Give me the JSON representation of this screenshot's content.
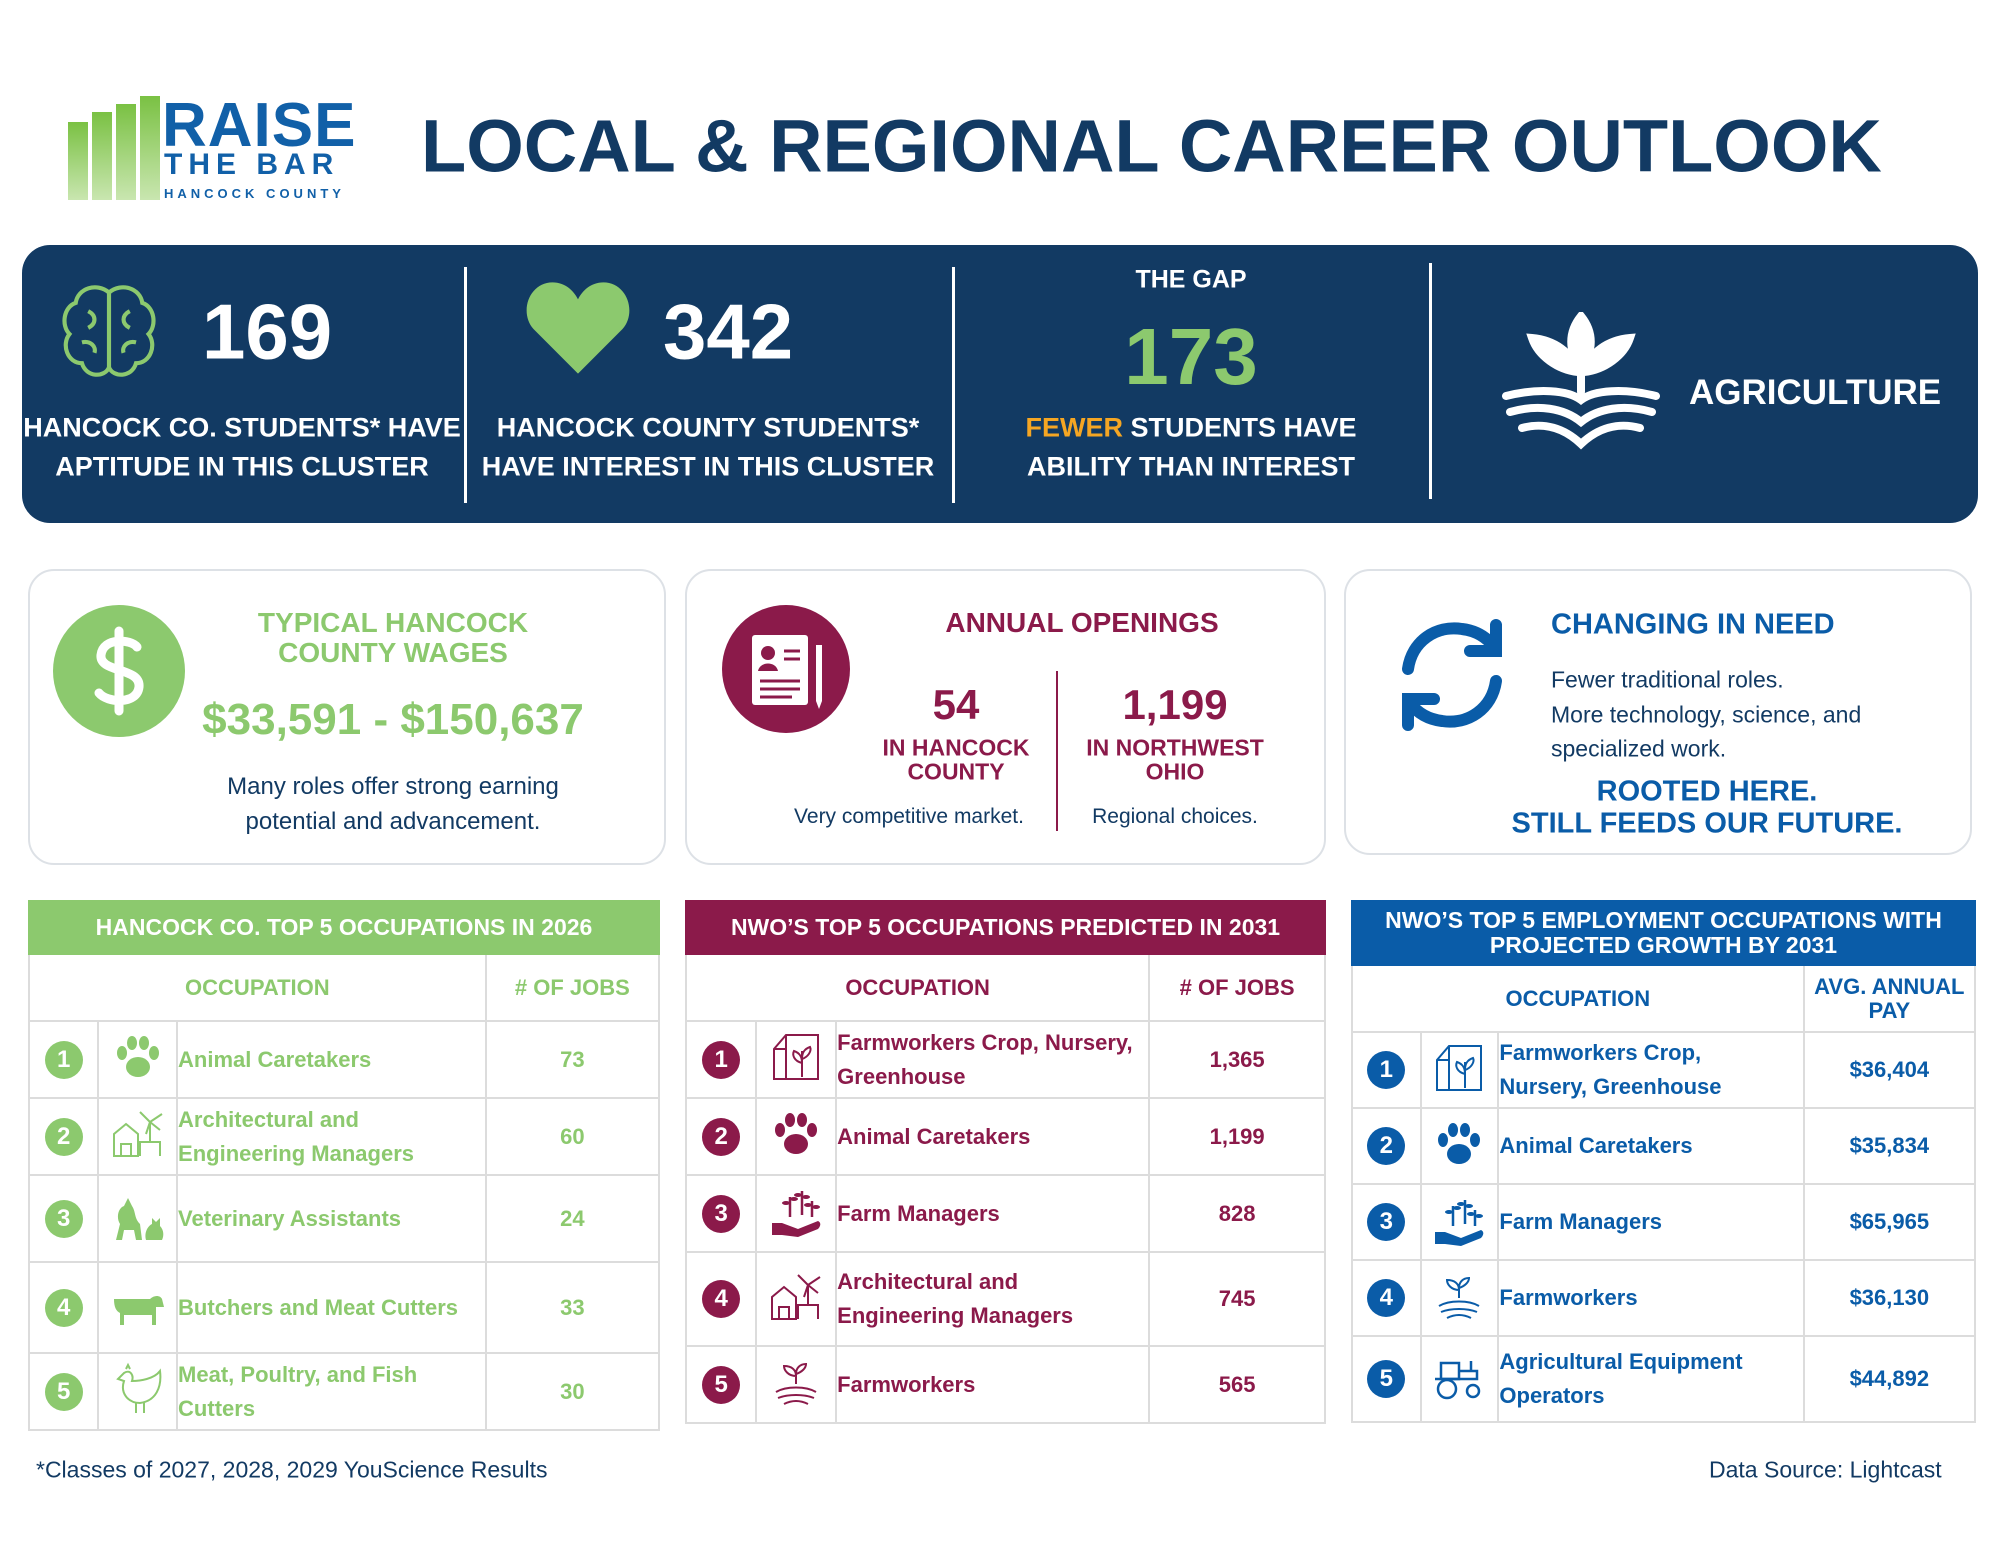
{
  "logo": {
    "line1": "RAISE",
    "line2": "THE BAR",
    "line3": "HANCOCK COUNTY"
  },
  "title": "LOCAL & REGIONAL CAREER OUTLOOK",
  "banner": {
    "aptitude": {
      "number": "169",
      "lines": [
        "HANCOCK CO. STUDENTS* HAVE",
        "APTITUDE IN THIS CLUSTER"
      ]
    },
    "interest": {
      "number": "342",
      "lines": [
        "HANCOCK COUNTY STUDENTS*",
        "HAVE INTEREST IN THIS CLUSTER"
      ]
    },
    "gap": {
      "label": "THE GAP",
      "number": "173",
      "highlight": "FEWER",
      "lines": [
        "STUDENTS HAVE",
        "ABILITY THAN INTEREST"
      ]
    },
    "cluster": "AGRICULTURE"
  },
  "wages": {
    "title": [
      "TYPICAL HANCOCK",
      "COUNTY WAGES"
    ],
    "range": "$33,591 - $150,637",
    "note": [
      "Many roles offer strong earning",
      "potential and advancement."
    ]
  },
  "openings": {
    "title": "ANNUAL OPENINGS",
    "local": {
      "value": "54",
      "label": [
        "IN HANCOCK",
        "COUNTY"
      ],
      "note": "Very competitive market."
    },
    "regional": {
      "value": "1,199",
      "label": [
        "IN NORTHWEST",
        "OHIO"
      ],
      "note": "Regional choices."
    }
  },
  "change": {
    "title": "CHANGING IN NEED",
    "lines": [
      "Fewer traditional roles.",
      "More technology, science, and",
      "specialized work."
    ],
    "tagline": [
      "ROOTED HERE.",
      "STILL FEEDS OUR FUTURE."
    ]
  },
  "tables": [
    {
      "title": "HANCOCK CO. TOP 5 OCCUPATIONS IN 2026",
      "headers": [
        "OCCUPATION",
        "# OF JOBS"
      ],
      "rows": [
        [
          "1",
          "Animal Caretakers",
          "73"
        ],
        [
          "2",
          "Architectural and Engineering Managers",
          "60"
        ],
        [
          "3",
          "Veterinary Assistants",
          "24"
        ],
        [
          "4",
          "Butchers and Meat Cutters",
          "33"
        ],
        [
          "5",
          "Meat, Poultry, and Fish Cutters",
          "30"
        ]
      ]
    },
    {
      "title": "NWO’S TOP 5 OCCUPATIONS PREDICTED IN 2031",
      "headers": [
        "OCCUPATION",
        "# OF JOBS"
      ],
      "rows": [
        [
          "1",
          "Farmworkers Crop, Nursery, Greenhouse",
          "1,365"
        ],
        [
          "2",
          "Animal Caretakers",
          "1,199"
        ],
        [
          "3",
          "Farm Managers",
          "828"
        ],
        [
          "4",
          "Architectural and Engineering Managers",
          "745"
        ],
        [
          "5",
          "Farmworkers",
          "565"
        ]
      ]
    },
    {
      "title": "NWO’S TOP 5 EMPLOYMENT OCCUPATIONS WITH PROJECTED GROWTH BY 2031",
      "headers": [
        "OCCUPATION",
        "AVG. ANNUAL PAY"
      ],
      "rows": [
        [
          "1",
          "Farmworkers Crop, Nursery, Greenhouse",
          "$36,404"
        ],
        [
          "2",
          "Animal Caretakers",
          "$35,834"
        ],
        [
          "3",
          "Farm Managers",
          "$65,965"
        ],
        [
          "4",
          "Farmworkers",
          "$36,130"
        ],
        [
          "5",
          "Agricultural Equipment Operators",
          "$44,892"
        ]
      ]
    }
  ],
  "footnote": "*Classes of 2027, 2028, 2029 YouScience Results",
  "source": "Data Source: Lightcast"
}
